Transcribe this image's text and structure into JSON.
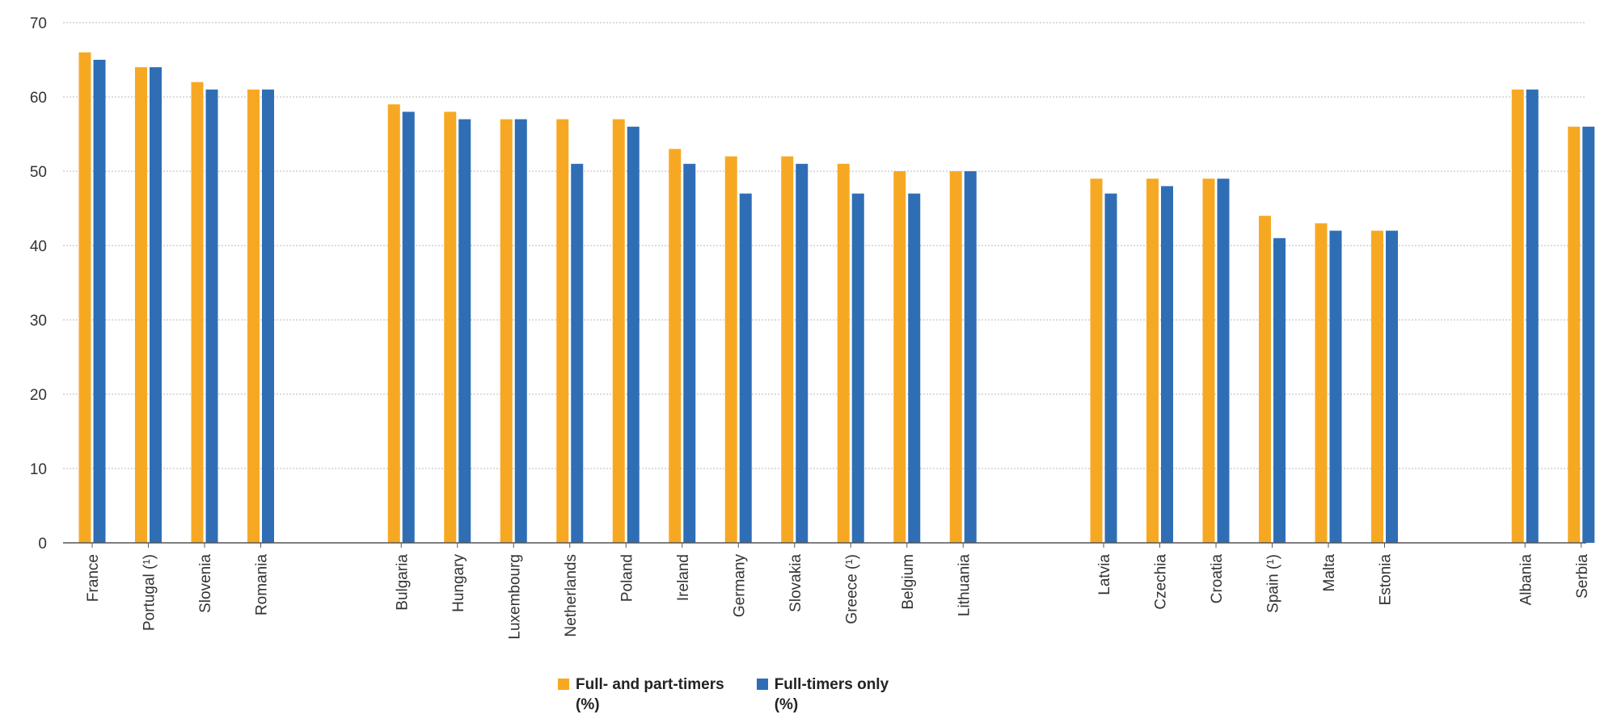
{
  "chart_data": {
    "type": "bar",
    "title": "",
    "xlabel": "",
    "ylabel": "",
    "ylim": [
      0,
      70
    ],
    "yticks": [
      0,
      10,
      20,
      30,
      40,
      50,
      60,
      70
    ],
    "grid": true,
    "legend_position": "bottom-center",
    "categories": [
      "France",
      "Portugal (¹)",
      "Slovenia",
      "Romania",
      "Bulgaria",
      "Hungary",
      "Luxembourg",
      "Netherlands",
      "Poland",
      "Ireland",
      "Germany",
      "Slovakia",
      "Greece (¹)",
      "Belgium",
      "Lithuania",
      "Latvia",
      "Czechia",
      "Croatia",
      "Spain (¹)",
      "Malta",
      "Estonia",
      "Albania",
      "Serbia"
    ],
    "groups": [
      4,
      11,
      6,
      2
    ],
    "series": [
      {
        "name_line1": "Full- and part-timers",
        "name_line2": "(%)",
        "color": "#F7A823",
        "values": [
          66,
          64,
          62,
          61,
          59,
          58,
          57,
          57,
          57,
          53,
          52,
          52,
          51,
          50,
          50,
          49,
          49,
          49,
          44,
          43,
          42,
          61,
          56
        ]
      },
      {
        "name_line1": "Full-timers only",
        "name_line2": "(%)",
        "color": "#2F6EB5",
        "values": [
          65,
          64,
          61,
          61,
          58,
          57,
          57,
          51,
          56,
          51,
          47,
          51,
          47,
          47,
          50,
          47,
          48,
          49,
          41,
          42,
          42,
          61,
          56
        ]
      }
    ]
  }
}
